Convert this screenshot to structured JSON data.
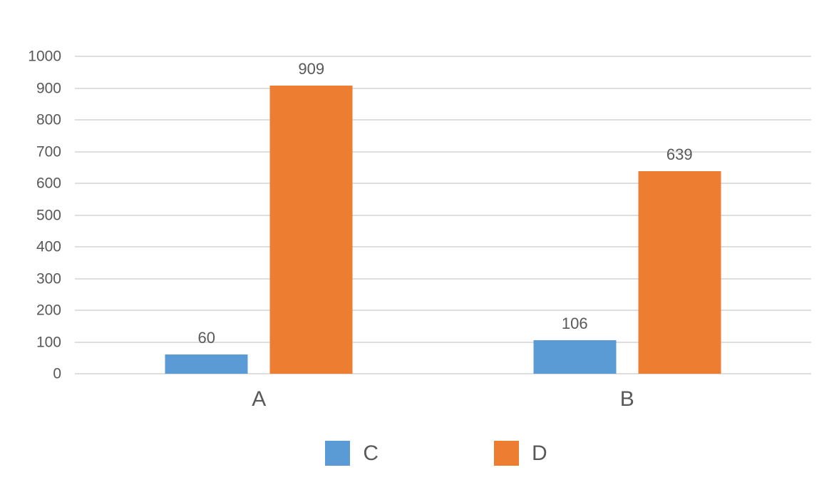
{
  "chart_data": {
    "type": "bar",
    "title": "",
    "categories": [
      "A",
      "B"
    ],
    "series": [
      {
        "name": "C",
        "color": "#5B9BD5",
        "values": [
          60,
          106
        ]
      },
      {
        "name": "D",
        "color": "#ED7D31",
        "values": [
          909,
          639
        ]
      }
    ],
    "value_labels_shown": true,
    "xlabel": "",
    "ylabel": "",
    "ylim": [
      0,
      1000
    ],
    "yticks": [
      0,
      100,
      200,
      300,
      400,
      500,
      600,
      700,
      800,
      900,
      1000
    ],
    "grid": "horizontal",
    "gridline_color": "#DEDEDE",
    "text_color": "#595959",
    "legend_position": "bottom"
  }
}
